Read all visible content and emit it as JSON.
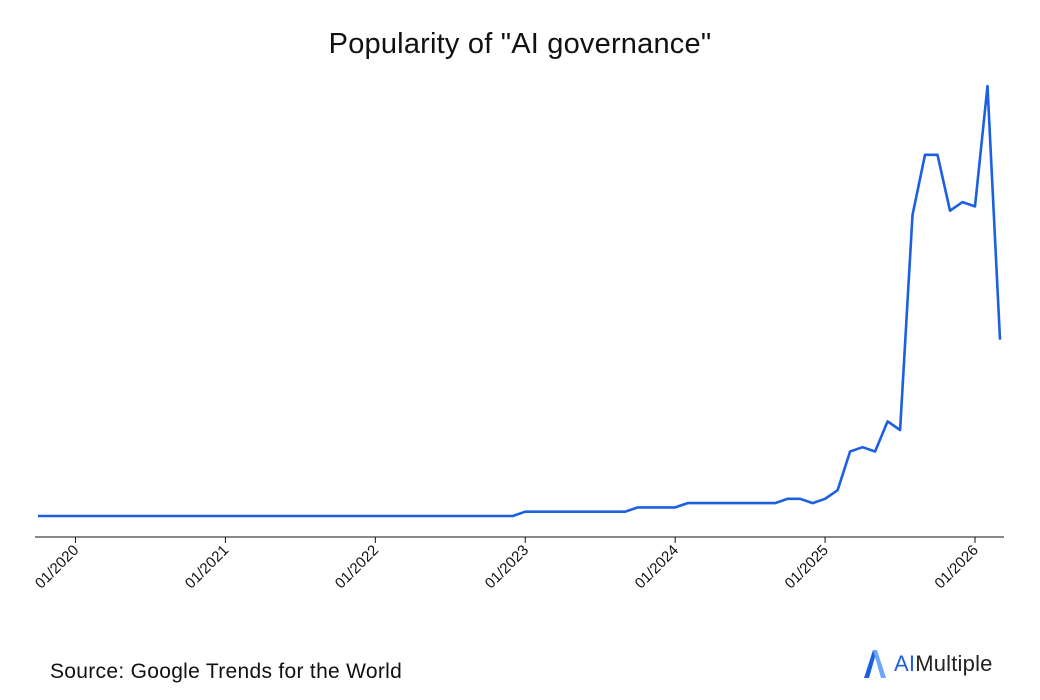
{
  "chart_data": {
    "type": "line",
    "title": "Popularity of \"AI governance\"",
    "xlabel": "",
    "ylabel": "",
    "x_tick_labels": [
      "01/2020",
      "01/2021",
      "01/2022",
      "01/2023",
      "01/2024",
      "01/2025",
      "01/2026"
    ],
    "x_range": [
      "2019-10",
      "2026-03"
    ],
    "y_range": [
      0,
      100
    ],
    "grid": false,
    "line_color": "#1c5fe0",
    "series": [
      {
        "points": [
          {
            "x": "2019-10",
            "y": 0
          },
          {
            "x": "2022-12",
            "y": 0
          },
          {
            "x": "2023-01",
            "y": 1
          },
          {
            "x": "2023-09",
            "y": 1
          },
          {
            "x": "2023-10",
            "y": 2
          },
          {
            "x": "2024-01",
            "y": 2
          },
          {
            "x": "2024-02",
            "y": 3
          },
          {
            "x": "2024-09",
            "y": 3
          },
          {
            "x": "2024-10",
            "y": 4
          },
          {
            "x": "2024-11",
            "y": 4
          },
          {
            "x": "2024-12",
            "y": 3
          },
          {
            "x": "2025-01",
            "y": 4
          },
          {
            "x": "2025-02",
            "y": 6
          },
          {
            "x": "2025-03",
            "y": 15
          },
          {
            "x": "2025-04",
            "y": 16
          },
          {
            "x": "2025-05",
            "y": 15
          },
          {
            "x": "2025-06",
            "y": 22
          },
          {
            "x": "2025-07",
            "y": 20
          },
          {
            "x": "2025-08",
            "y": 70
          },
          {
            "x": "2025-09",
            "y": 84
          },
          {
            "x": "2025-10",
            "y": 84
          },
          {
            "x": "2025-11",
            "y": 71
          },
          {
            "x": "2025-12",
            "y": 73
          },
          {
            "x": "2026-01",
            "y": 72
          },
          {
            "x": "2026-02",
            "y": 100
          },
          {
            "x": "2026-03",
            "y": 41
          }
        ]
      }
    ]
  },
  "footer": {
    "source": "Source: Google Trends for the World",
    "brand_ai": "AI",
    "brand_rest": "Multiple"
  }
}
